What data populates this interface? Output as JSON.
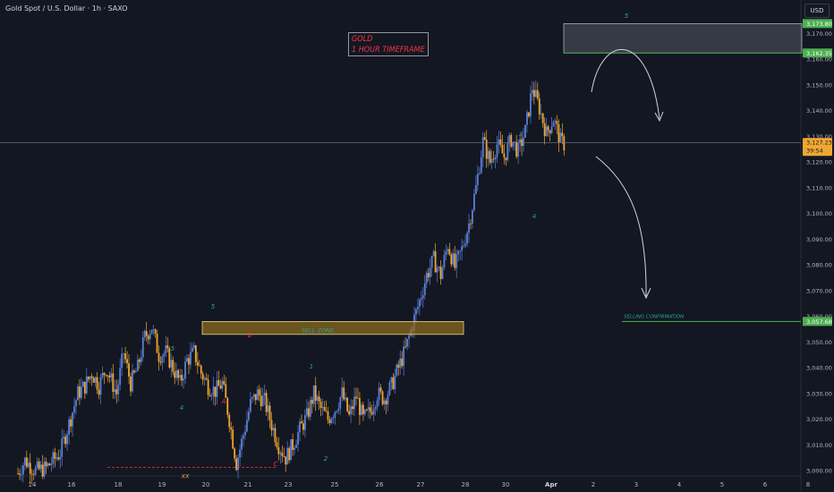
{
  "header": {
    "symbol": "Gold Spot / U.S. Dollar · 1h · SAXO",
    "currency": "USD"
  },
  "annotation_box": {
    "line1": "GOLD",
    "line2": "1 HOUR TIMEFRAME"
  },
  "colors": {
    "background": "#131722",
    "bull": "#5b7fd6",
    "bear": "#f0a732",
    "zone": "#8a6a1c",
    "accent": "#4caf50",
    "label": "#26a69a"
  },
  "chart_data": {
    "type": "candlestick",
    "x_ticks": [
      "14",
      "16",
      "18",
      "19",
      "20",
      "21",
      "23",
      "25",
      "26",
      "27",
      "28",
      "30",
      "Apr",
      "2",
      "3",
      "4",
      "5",
      "6",
      "8"
    ],
    "y_ticks": [
      3000,
      3010,
      3020,
      3030,
      3040,
      3050,
      3060,
      3070,
      3080,
      3090,
      3100,
      3110,
      3120,
      3130,
      3140,
      3150,
      3160,
      3170
    ],
    "ylim": [
      2998,
      3176
    ],
    "price_path": [
      [
        0,
        2999
      ],
      [
        2,
        3004
      ],
      [
        5,
        3000
      ],
      [
        8,
        3001
      ],
      [
        10,
        3004
      ],
      [
        12,
        3007
      ],
      [
        14,
        3016
      ],
      [
        17,
        3030
      ],
      [
        19,
        3033
      ],
      [
        21,
        3038
      ],
      [
        23,
        3033
      ],
      [
        25,
        3040
      ],
      [
        28,
        3030
      ],
      [
        30,
        3046
      ],
      [
        32,
        3034
      ],
      [
        34,
        3040
      ],
      [
        36,
        3052
      ],
      [
        38,
        3056
      ],
      [
        40,
        3045
      ],
      [
        42,
        3046
      ],
      [
        44,
        3040
      ],
      [
        46,
        3034
      ],
      [
        48,
        3043
      ],
      [
        50,
        3046
      ],
      [
        52,
        3038
      ],
      [
        54,
        3033
      ],
      [
        56,
        3031
      ],
      [
        58,
        3034
      ],
      [
        60,
        3020
      ],
      [
        62,
        3003
      ],
      [
        64,
        3014
      ],
      [
        66,
        3026
      ],
      [
        68,
        3030
      ],
      [
        70,
        3027
      ],
      [
        72,
        3018
      ],
      [
        74,
        3010
      ],
      [
        76,
        3005
      ],
      [
        78,
        3010
      ],
      [
        80,
        3016
      ],
      [
        82,
        3021
      ],
      [
        84,
        3030
      ],
      [
        86,
        3024
      ],
      [
        88,
        3020
      ],
      [
        90,
        3024
      ],
      [
        92,
        3030
      ],
      [
        94,
        3021
      ],
      [
        96,
        3029
      ],
      [
        98,
        3020
      ],
      [
        100,
        3023
      ],
      [
        102,
        3030
      ],
      [
        104,
        3028
      ],
      [
        106,
        3033
      ],
      [
        108,
        3040
      ],
      [
        110,
        3047
      ],
      [
        112,
        3057
      ],
      [
        114,
        3066
      ],
      [
        116,
        3076
      ],
      [
        118,
        3082
      ],
      [
        120,
        3076
      ],
      [
        122,
        3088
      ],
      [
        124,
        3079
      ],
      [
        126,
        3086
      ],
      [
        128,
        3096
      ],
      [
        130,
        3110
      ],
      [
        132,
        3128
      ],
      [
        134,
        3120
      ],
      [
        136,
        3127
      ],
      [
        138,
        3122
      ],
      [
        140,
        3129
      ],
      [
        142,
        3124
      ],
      [
        144,
        3132
      ],
      [
        146,
        3149
      ],
      [
        148,
        3141
      ],
      [
        150,
        3131
      ],
      [
        152,
        3137
      ],
      [
        154,
        3128
      ],
      [
        155,
        3127
      ]
    ],
    "current_price": "3,127.23",
    "countdown": "39:54",
    "price_labels": [
      "3,173.80",
      "3,162.35",
      "3,057.68"
    ],
    "zones": [
      {
        "label": "SELL ZONE",
        "from": 3053,
        "to": 3058
      },
      {
        "label": "",
        "from": 3162.35,
        "to": 3173.8
      }
    ],
    "levels": [
      {
        "label": "SELLING CONFIRMATION",
        "value": 3057.68
      },
      {
        "label": "XX",
        "value": 3001
      }
    ],
    "wave_labels": [
      "5",
      "4",
      "5",
      "A",
      "B",
      "1",
      "C",
      "2",
      "3",
      "4",
      "5"
    ]
  }
}
